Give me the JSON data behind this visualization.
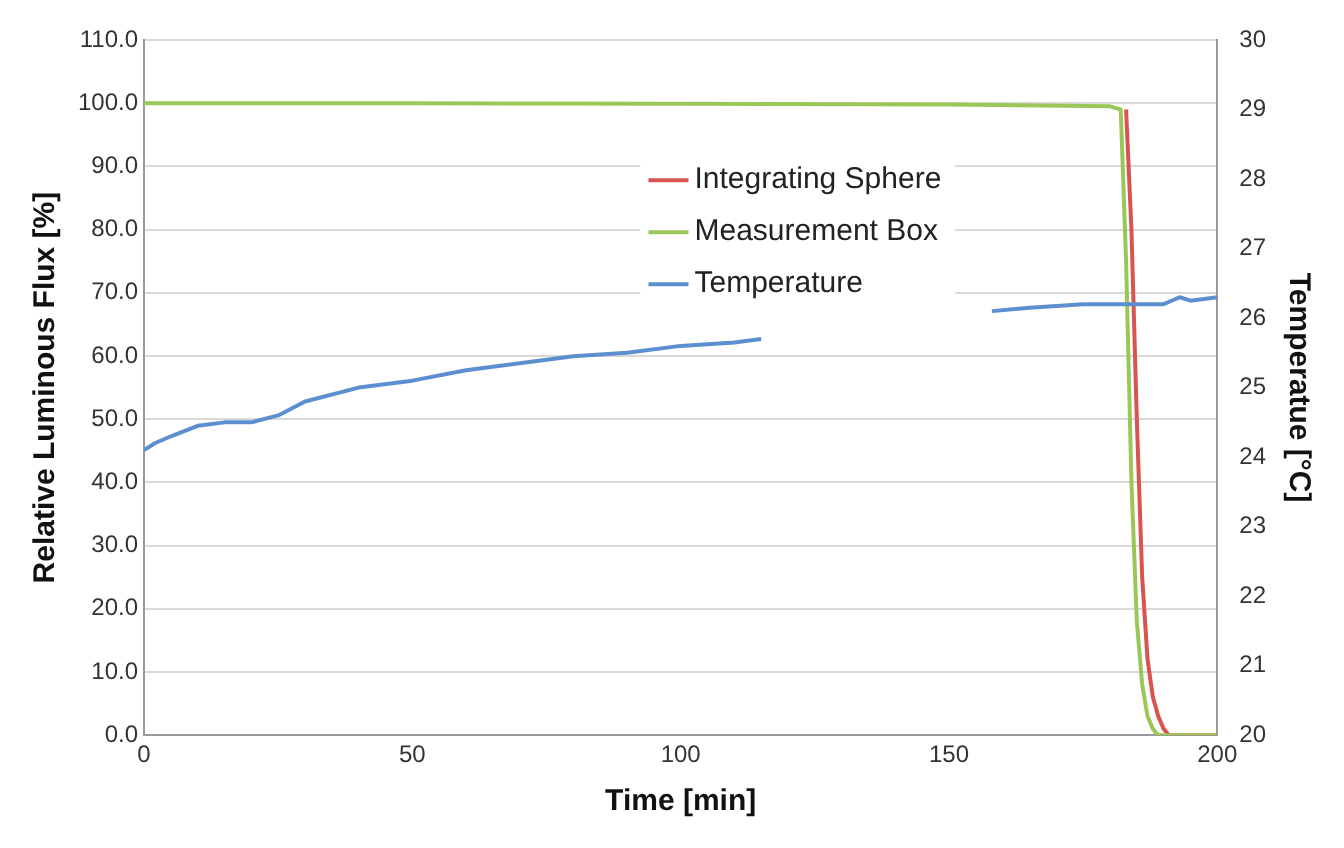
{
  "chart_data": {
    "type": "line",
    "xlabel": "Time [min]",
    "ylabel": "Relative Luminous Flux [%]",
    "y2label": "Temperatue [°C]",
    "xlim": [
      0,
      200
    ],
    "xticks": [
      0,
      50,
      100,
      150,
      200
    ],
    "ylim": [
      0,
      110
    ],
    "yticks": [
      {
        "value": 0,
        "label": "0.0"
      },
      {
        "value": 10,
        "label": "10.0"
      },
      {
        "value": 20,
        "label": "20.0"
      },
      {
        "value": 30,
        "label": "30.0"
      },
      {
        "value": 40,
        "label": "40.0"
      },
      {
        "value": 50,
        "label": "50.0"
      },
      {
        "value": 60,
        "label": "60.0"
      },
      {
        "value": 70,
        "label": "70.0"
      },
      {
        "value": 80,
        "label": "80.0"
      },
      {
        "value": 90,
        "label": "90.0"
      },
      {
        "value": 100,
        "label": "100.0"
      },
      {
        "value": 110,
        "label": "110.0"
      }
    ],
    "y2lim": [
      20,
      30
    ],
    "y2ticks": [
      20,
      21,
      22,
      23,
      24,
      25,
      26,
      27,
      28,
      29,
      30
    ],
    "grid": "y",
    "legend": "top",
    "marker": "none",
    "line_style": "solid",
    "series": [
      {
        "name": "Integrating Sphere",
        "color": "#d9534f",
        "x": [
          183,
          184,
          185,
          186,
          187,
          188,
          189,
          190,
          191,
          200
        ],
        "values": [
          99,
          80,
          50,
          25,
          12,
          6,
          3,
          1,
          0,
          0
        ]
      },
      {
        "name": "Measurement Box",
        "color": "#9bc759",
        "x": [
          0,
          50,
          100,
          150,
          180,
          182,
          183,
          184,
          185,
          186,
          187,
          188,
          189,
          200
        ],
        "values": [
          100,
          100,
          99.9,
          99.8,
          99.5,
          99,
          75,
          40,
          18,
          8,
          3,
          1,
          0,
          0
        ]
      },
      {
        "name": "Temperature",
        "color": "#5b8fd0",
        "axis": "y2",
        "x": [
          0,
          2,
          5,
          10,
          15,
          20,
          25,
          30,
          40,
          50,
          60,
          70,
          80,
          90,
          100,
          110,
          115,
          137,
          158,
          165,
          175,
          185,
          190,
          193,
          195,
          200
        ],
        "values": [
          24.1,
          24.2,
          24.3,
          24.45,
          24.5,
          24.5,
          24.6,
          24.8,
          25.0,
          25.1,
          25.25,
          25.35,
          25.45,
          25.5,
          25.6,
          25.65,
          25.7,
          null,
          26.1,
          26.15,
          26.2,
          26.2,
          26.2,
          26.3,
          26.25,
          26.3
        ]
      }
    ]
  }
}
